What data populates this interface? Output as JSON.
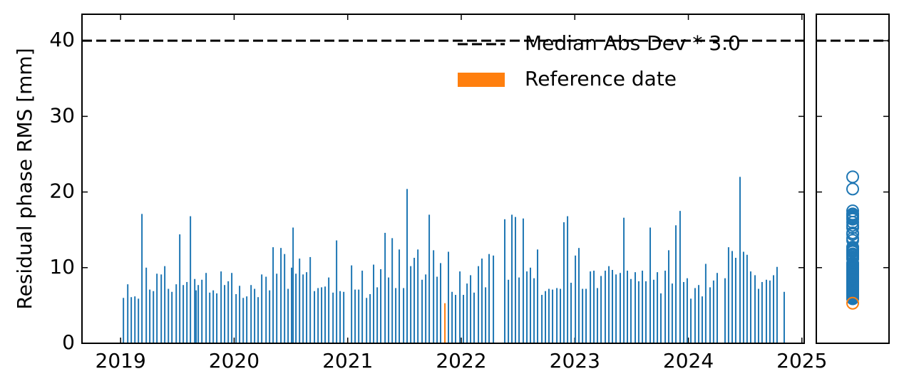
{
  "chart_data": {
    "type": "bar",
    "y_label": "Residual phase RMS [mm]",
    "xlim": [
      2018.66,
      2025.02
    ],
    "xticks": [
      2019,
      2020,
      2021,
      2022,
      2023,
      2024,
      2025
    ],
    "ylim": [
      0,
      43.5
    ],
    "yticks": [
      0,
      10,
      20,
      30,
      40
    ],
    "legend": "upper right",
    "hline": {
      "value": 40,
      "label": "Median Abs Dev * 3.0",
      "color": "#000000"
    },
    "series": [
      {
        "color": "#1f77b4",
        "x": [
          2019.025,
          2019.063,
          2019.094,
          2019.126,
          2019.157,
          2019.188,
          2019.226,
          2019.257,
          2019.289,
          2019.32,
          2019.358,
          2019.389,
          2019.421,
          2019.452,
          2019.49,
          2019.521,
          2019.552,
          2019.584,
          2019.615,
          2019.653,
          2019.665,
          2019.684,
          2019.716,
          2019.753,
          2019.785,
          2019.816,
          2019.847,
          2019.885,
          2019.916,
          2019.948,
          2019.979,
          2020.017,
          2020.048,
          2020.08,
          2020.111,
          2020.149,
          2020.18,
          2020.211,
          2020.243,
          2020.281,
          2020.312,
          2020.343,
          2020.375,
          2020.412,
          2020.444,
          2020.475,
          2020.506,
          2020.519,
          2020.544,
          2020.576,
          2020.607,
          2020.638,
          2020.67,
          2020.707,
          2020.739,
          2020.77,
          2020.801,
          2020.833,
          2020.871,
          2020.902,
          2020.933,
          2020.965,
          2021.034,
          2021.065,
          2021.097,
          2021.128,
          2021.166,
          2021.197,
          2021.228,
          2021.26,
          2021.291,
          2021.329,
          2021.36,
          2021.392,
          2021.423,
          2021.454,
          2021.492,
          2021.523,
          2021.555,
          2021.586,
          2021.618,
          2021.655,
          2021.687,
          2021.718,
          2021.756,
          2021.787,
          2021.818,
          2021.887,
          2021.919,
          2021.95,
          2021.988,
          2022.019,
          2022.051,
          2022.082,
          2022.113,
          2022.151,
          2022.182,
          2022.214,
          2022.245,
          2022.283,
          2022.383,
          2022.415,
          2022.446,
          2022.477,
          2022.509,
          2022.546,
          2022.578,
          2022.609,
          2022.641,
          2022.672,
          2022.71,
          2022.741,
          2022.772,
          2022.804,
          2022.842,
          2022.873,
          2022.904,
          2022.936,
          2022.967,
          2023.005,
          2023.036,
          2023.068,
          2023.099,
          2023.137,
          2023.168,
          2023.199,
          2023.231,
          2023.268,
          2023.3,
          2023.331,
          2023.363,
          2023.4,
          2023.432,
          2023.463,
          2023.494,
          2023.532,
          2023.563,
          2023.595,
          2023.626,
          2023.664,
          2023.695,
          2023.727,
          2023.758,
          2023.796,
          2023.827,
          2023.858,
          2023.89,
          2023.927,
          2023.959,
          2023.99,
          2024.022,
          2024.059,
          2024.091,
          2024.122,
          2024.153,
          2024.191,
          2024.222,
          2024.254,
          2024.323,
          2024.354,
          2024.386,
          2024.417,
          2024.455,
          2024.486,
          2024.517,
          2024.549,
          2024.587,
          2024.618,
          2024.649,
          2024.687,
          2024.718,
          2024.75,
          2024.781,
          2024.844
        ],
        "values": [
          6.0,
          7.8,
          6.1,
          6.2,
          5.9,
          17.1,
          10.0,
          7.1,
          6.9,
          9.2,
          9.1,
          10.2,
          7.2,
          6.8,
          7.8,
          14.4,
          7.7,
          8.1,
          16.8,
          8.5,
          7.0,
          7.7,
          8.4,
          9.3,
          6.7,
          7.0,
          6.6,
          9.5,
          7.7,
          8.2,
          9.3,
          6.5,
          7.6,
          6.0,
          6.2,
          7.7,
          7.2,
          6.1,
          9.1,
          8.8,
          7.0,
          12.7,
          9.2,
          12.6,
          11.8,
          7.2,
          10.0,
          15.3,
          9.2,
          11.2,
          9.1,
          9.4,
          11.4,
          6.9,
          7.3,
          7.4,
          7.5,
          8.7,
          6.7,
          13.6,
          6.9,
          6.8,
          10.3,
          7.1,
          7.1,
          9.6,
          6.0,
          6.5,
          10.4,
          7.4,
          9.8,
          14.6,
          8.7,
          13.9,
          7.3,
          12.4,
          7.3,
          20.4,
          10.2,
          11.3,
          12.4,
          8.4,
          9.1,
          17.0,
          12.3,
          8.8,
          10.6,
          12.1,
          6.8,
          6.4,
          9.5,
          6.4,
          7.9,
          9.0,
          6.7,
          10.2,
          11.2,
          7.4,
          11.8,
          11.6,
          16.4,
          8.4,
          17.0,
          16.7,
          8.7,
          16.5,
          9.5,
          10.0,
          8.6,
          12.4,
          6.4,
          6.9,
          7.2,
          7.1,
          7.3,
          7.2,
          16.0,
          16.8,
          8.0,
          11.6,
          12.6,
          7.2,
          7.2,
          9.5,
          9.6,
          7.3,
          8.9,
          9.6,
          10.2,
          9.7,
          9.1,
          9.3,
          16.6,
          9.6,
          8.5,
          9.4,
          8.2,
          9.6,
          8.2,
          15.3,
          8.4,
          9.4,
          6.6,
          9.6,
          12.3,
          7.9,
          15.6,
          17.5,
          8.1,
          8.6,
          5.9,
          7.3,
          7.7,
          6.2,
          10.5,
          7.4,
          8.3,
          9.3,
          8.6,
          12.7,
          12.2,
          11.3,
          22.0,
          12.1,
          11.7,
          9.5,
          9.0,
          7.2,
          8.1,
          8.4,
          8.3,
          9.0,
          10.1,
          6.8
        ]
      },
      {
        "name": "Reference date",
        "color": "#ff7f0e",
        "x": [
          2021.856
        ],
        "values": [
          5.3
        ]
      }
    ]
  }
}
